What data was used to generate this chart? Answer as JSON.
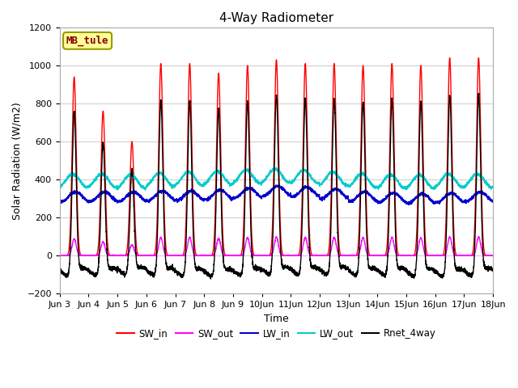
{
  "title": "4-Way Radiometer",
  "xlabel": "Time",
  "ylabel": "Solar Radiation (W/m2)",
  "ylim": [
    -200,
    1200
  ],
  "yticks": [
    -200,
    0,
    200,
    400,
    600,
    800,
    1000,
    1200
  ],
  "start_day": 3,
  "end_day": 18,
  "num_days": 15,
  "colors": {
    "SW_in": "#ff0000",
    "SW_out": "#ff00ff",
    "LW_in": "#0000cc",
    "LW_out": "#00cccc",
    "Rnet_4way": "#000000"
  },
  "plot_bg_color": "#ffffff",
  "fig_bg_color": "#ffffff",
  "grid_color": "#d0d0d0",
  "annotation_text": "MB_tule",
  "annotation_bg": "#ffff99",
  "annotation_edge": "#999900",
  "legend_entries": [
    "SW_in",
    "SW_out",
    "LW_in",
    "LW_out",
    "Rnet_4way"
  ],
  "title_fontsize": 11,
  "label_fontsize": 9,
  "tick_fontsize": 8,
  "line_width": 1.0,
  "figsize": [
    6.4,
    4.8
  ],
  "dpi": 100,
  "day_peaks_SW_in": [
    940,
    760,
    600,
    1010,
    1010,
    960,
    1000,
    1030,
    1010,
    1010,
    1000,
    1010,
    1000,
    1040,
    1040
  ],
  "lw_in_base": [
    310,
    310,
    310,
    315,
    315,
    320,
    330,
    340,
    335,
    325,
    310,
    305,
    300,
    305,
    310
  ],
  "lw_out_base": [
    395,
    395,
    390,
    400,
    405,
    410,
    415,
    420,
    415,
    405,
    395,
    390,
    390,
    395,
    395
  ]
}
